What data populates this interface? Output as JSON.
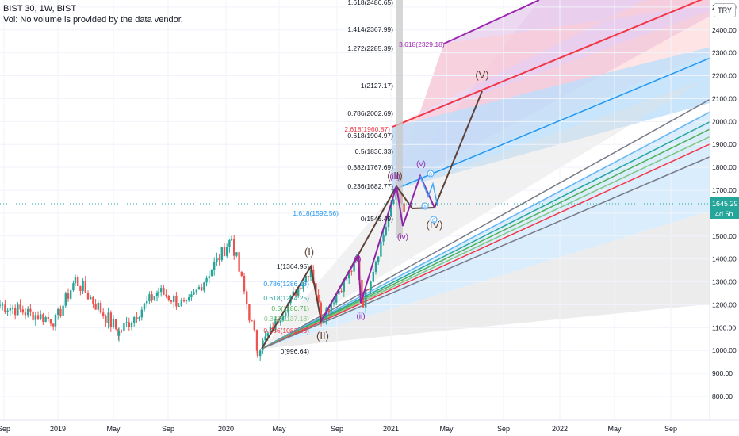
{
  "header": {
    "symbol_line": "BIST 30, 1W, BIST",
    "volume_note": "Vol: No volume is provided by the data vendor."
  },
  "currency_button": "TRY",
  "price_axis": {
    "labels": [
      "2500.00",
      "2400.00",
      "2300.00",
      "2200.00",
      "2100.00",
      "2000.00",
      "1900.00",
      "1800.00",
      "1700.00",
      "1600.00",
      "1500.00",
      "1400.00",
      "1300.00",
      "1200.00",
      "1100.00",
      "1000.00",
      "900.00",
      "800.00"
    ],
    "current_price": "1645.29",
    "countdown": "4d 6h"
  },
  "time_axis": {
    "labels": [
      "Sep",
      "2019",
      "May",
      "Sep",
      "2020",
      "May",
      "Sep",
      "2021",
      "May",
      "Sep",
      "2022",
      "May",
      "Sep"
    ]
  },
  "fib_retracement_upper": [
    "1.618(2486.65)",
    "1.414(2367.99)",
    "1.272(2285.39)",
    "1(2127.17)",
    "0.786(2002.69)",
    "0.618(1904.97)",
    "0.5(1836.33)",
    "0.382(1767.69)",
    "0.236(1682.77)",
    "0(1545.49)"
  ],
  "fib_retracement_lower": [
    "1(1364.95)",
    "0.786(1286.13)",
    "0.618(1224.25)",
    "0.5(1180.71)",
    "0.382(1137.18)",
    "0.236(1083.36)",
    "0(996.64)"
  ],
  "fib_extension_labels": [
    "2.618(1960.87)",
    "1.618(1592.56)",
    "3.618(2329.18)"
  ],
  "wave_labels_primary": [
    "(I)",
    "(II)",
    "(III)",
    "(IV)",
    "(V)"
  ],
  "wave_labels_minor": [
    "(i)",
    "(ii)",
    "(iii)",
    "(iv)",
    "(v)"
  ],
  "wave_labels_sub": [
    "A",
    "B",
    "C"
  ],
  "colors": {
    "bull": "#26a69a",
    "bear": "#ef5350",
    "wave_primary": "#5d4037",
    "wave_minor": "#8e24aa",
    "fib_blue": "#2196f3",
    "fib_red": "#f23645",
    "fib_green": "#4caf50",
    "fib_gray": "#787b86",
    "fib_purple": "#9c27b0"
  }
}
